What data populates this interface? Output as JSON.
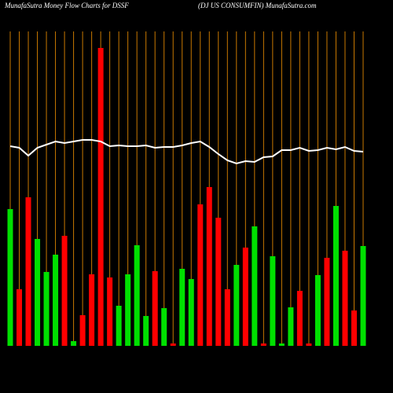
{
  "chart_data": {
    "type": "bar",
    "title": "MunafaSutra  Money Flow  Charts for DSSF",
    "subtitle": "(DJ US CONSUMFIN) MunafaSutra.com",
    "ylim": [
      0,
      380
    ],
    "grid_color": "#c87800",
    "series": [
      {
        "name": "Money Flow",
        "values": [
          174,
          72,
          189,
          136,
          94,
          116,
          140,
          6,
          39,
          91,
          379,
          87,
          51,
          91,
          128,
          38,
          95,
          48,
          3,
          98,
          85,
          180,
          202,
          163,
          72,
          103,
          125,
          152,
          3,
          114,
          3,
          49,
          70,
          3,
          90,
          112,
          178,
          121,
          45,
          127
        ],
        "colors": [
          "#00e000",
          "#ff0000",
          "#ff0000",
          "#00e000",
          "#00e000",
          "#00e000",
          "#ff0000",
          "#00e000",
          "#ff0000",
          "#ff0000",
          "#ff0000",
          "#ff0000",
          "#00e000",
          "#00e000",
          "#00e000",
          "#00e000",
          "#ff0000",
          "#00e000",
          "#ff0000",
          "#00e000",
          "#00e000",
          "#ff0000",
          "#ff0000",
          "#ff0000",
          "#ff0000",
          "#00e000",
          "#ff0000",
          "#00e000",
          "#ff0000",
          "#00e000",
          "#00e000",
          "#00e000",
          "#ff0000",
          "#ff0000",
          "#00e000",
          "#ff0000",
          "#00e000",
          "#ff0000",
          "#ff0000",
          "#00e000"
        ]
      },
      {
        "name": "Price",
        "type": "line",
        "color": "#ffffff",
        "values": [
          254,
          252,
          242,
          252,
          256,
          260,
          258,
          260,
          262,
          262,
          260,
          254,
          255,
          254,
          254,
          255,
          252,
          253,
          253,
          255,
          258,
          260,
          253,
          244,
          236,
          232,
          235,
          234,
          240,
          241,
          249,
          249,
          252,
          248,
          249,
          252,
          250,
          253,
          248,
          247
        ]
      }
    ]
  }
}
